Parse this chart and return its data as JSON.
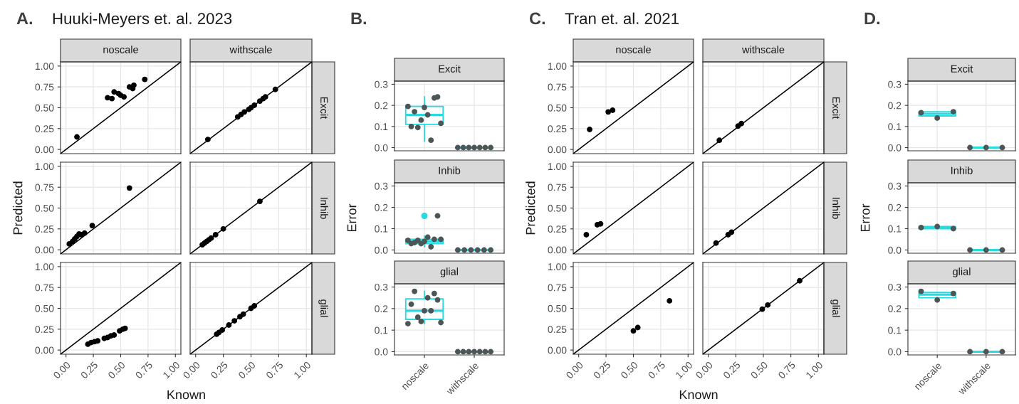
{
  "chart_data": [
    {
      "type": "scatter",
      "title": "noscale",
      "annotations": [
        "A.",
        "Huuki-Meyers et. al. 2023"
      ],
      "xlim": [
        -0.05,
        1.05
      ],
      "ylim": [
        -0.05,
        1.05
      ],
      "xticks": [
        0,
        0.25,
        0.5,
        0.75,
        1
      ],
      "yticks": [
        {
          "value": 0,
          "label": "0.00"
        },
        {
          "value": 0.25,
          "label": "0.25"
        },
        {
          "value": 0.5,
          "label": "0.50"
        },
        {
          "value": 0.75,
          "label": "0.75"
        },
        {
          "value": 1,
          "label": "1.00"
        }
      ],
      "tick_labels": "y",
      "grid": true,
      "series": [
        {
          "color": "#000000",
          "marker": "circle",
          "x": [
            0.1,
            0.38,
            0.42,
            0.44,
            0.48,
            0.5,
            0.53,
            0.58,
            0.61,
            0.62,
            0.72
          ],
          "values": [
            0.15,
            0.62,
            0.61,
            0.69,
            0.67,
            0.65,
            0.63,
            0.75,
            0.73,
            0.77,
            0.84
          ]
        },
        {
          "type": "line",
          "color": "#000000",
          "x": [
            -0.05,
            1.05
          ],
          "values": [
            -0.05,
            1.05
          ]
        }
      ]
    },
    {
      "type": "scatter",
      "title": "withscale",
      "y2label": "Excit",
      "xlim": [
        -0.05,
        1.05
      ],
      "ylim": [
        -0.05,
        1.05
      ],
      "xticks": [
        0,
        0.25,
        0.5,
        0.75,
        1
      ],
      "yticks": [
        0,
        0.25,
        0.5,
        0.75,
        1
      ],
      "tick_labels": false,
      "grid": true,
      "series": [
        {
          "color": "#000000",
          "marker": "circle",
          "x": [
            0.11,
            0.38,
            0.41,
            0.44,
            0.48,
            0.5,
            0.53,
            0.58,
            0.61,
            0.63,
            0.72
          ],
          "values": [
            0.12,
            0.39,
            0.42,
            0.45,
            0.48,
            0.5,
            0.53,
            0.58,
            0.61,
            0.63,
            0.72
          ]
        },
        {
          "type": "line",
          "color": "#000000",
          "x": [
            -0.05,
            1.05
          ],
          "values": [
            -0.05,
            1.05
          ]
        }
      ]
    },
    {
      "type": "scatter",
      "ylabel": "Predicted",
      "xlim": [
        -0.05,
        1.05
      ],
      "ylim": [
        -0.05,
        1.05
      ],
      "xticks": [
        0,
        0.25,
        0.5,
        0.75,
        1
      ],
      "yticks": [
        {
          "value": 0,
          "label": "0.00"
        },
        {
          "value": 0.25,
          "label": "0.25"
        },
        {
          "value": 0.5,
          "label": "0.50"
        },
        {
          "value": 0.75,
          "label": "0.75"
        },
        {
          "value": 1,
          "label": "1.00"
        }
      ],
      "tick_labels": "y",
      "grid": true,
      "series": [
        {
          "color": "#000000",
          "marker": "circle",
          "x": [
            0.03,
            0.06,
            0.08,
            0.1,
            0.12,
            0.14,
            0.17,
            0.24,
            0.58
          ],
          "values": [
            0.07,
            0.1,
            0.13,
            0.16,
            0.19,
            0.18,
            0.2,
            0.29,
            0.74
          ]
        },
        {
          "type": "line",
          "color": "#000000",
          "x": [
            -0.05,
            1.05
          ],
          "values": [
            -0.05,
            1.05
          ]
        }
      ]
    },
    {
      "type": "scatter",
      "y2label": "Inhib",
      "xlim": [
        -0.05,
        1.05
      ],
      "ylim": [
        -0.05,
        1.05
      ],
      "xticks": [
        0,
        0.25,
        0.5,
        0.75,
        1
      ],
      "yticks": [
        0,
        0.25,
        0.5,
        0.75,
        1
      ],
      "tick_labels": false,
      "grid": true,
      "series": [
        {
          "color": "#000000",
          "marker": "circle",
          "x": [
            0.06,
            0.08,
            0.1,
            0.12,
            0.14,
            0.18,
            0.25,
            0.58
          ],
          "values": [
            0.06,
            0.08,
            0.1,
            0.12,
            0.14,
            0.18,
            0.25,
            0.58
          ]
        },
        {
          "type": "line",
          "color": "#000000",
          "x": [
            -0.05,
            1.05
          ],
          "values": [
            -0.05,
            1.05
          ]
        }
      ]
    },
    {
      "type": "scatter",
      "xlabel": "Known",
      "xlim": [
        -0.05,
        1.05
      ],
      "ylim": [
        -0.05,
        1.05
      ],
      "xticks": [
        {
          "value": 0,
          "label": "0.00"
        },
        {
          "value": 0.25,
          "label": "0.25"
        },
        {
          "value": 0.5,
          "label": "0.50"
        },
        {
          "value": 0.75,
          "label": "0.75"
        },
        {
          "value": 1,
          "label": "1.00"
        }
      ],
      "yticks": [
        {
          "value": 0,
          "label": "0.00"
        },
        {
          "value": 0.25,
          "label": "0.25"
        },
        {
          "value": 0.5,
          "label": "0.50"
        },
        {
          "value": 0.75,
          "label": "0.75"
        },
        {
          "value": 1,
          "label": "1.00"
        }
      ],
      "grid": true,
      "series": [
        {
          "color": "#000000",
          "marker": "circle",
          "x": [
            0.2,
            0.23,
            0.26,
            0.29,
            0.35,
            0.38,
            0.41,
            0.44,
            0.49,
            0.52,
            0.54
          ],
          "values": [
            0.07,
            0.09,
            0.1,
            0.11,
            0.14,
            0.15,
            0.17,
            0.18,
            0.23,
            0.25,
            0.26
          ]
        },
        {
          "type": "line",
          "color": "#000000",
          "x": [
            -0.05,
            1.05
          ],
          "values": [
            -0.05,
            1.05
          ]
        }
      ]
    },
    {
      "type": "scatter",
      "y2label": "glial",
      "xlim": [
        -0.05,
        1.05
      ],
      "ylim": [
        -0.05,
        1.05
      ],
      "xticks": [
        {
          "value": 0,
          "label": "0.00"
        },
        {
          "value": 0.25,
          "label": "0.25"
        },
        {
          "value": 0.5,
          "label": "0.50"
        },
        {
          "value": 0.75,
          "label": "0.75"
        },
        {
          "value": 1,
          "label": "1.00"
        }
      ],
      "yticks": [
        0,
        0.25,
        0.5,
        0.75,
        1
      ],
      "tick_labels": "x",
      "grid": true,
      "series": [
        {
          "color": "#000000",
          "marker": "circle",
          "x": [
            0.19,
            0.21,
            0.24,
            0.3,
            0.35,
            0.4,
            0.43,
            0.5,
            0.53
          ],
          "values": [
            0.19,
            0.21,
            0.24,
            0.3,
            0.35,
            0.4,
            0.43,
            0.5,
            0.53
          ]
        },
        {
          "type": "line",
          "color": "#000000",
          "x": [
            -0.05,
            1.05
          ],
          "values": [
            -0.05,
            1.05
          ]
        }
      ]
    },
    {
      "type": "box",
      "title": "Excit",
      "annotations": [
        "B."
      ],
      "categories": [
        "noscale",
        "withscale"
      ],
      "ylim": [
        -0.015,
        0.315
      ],
      "yticks": [
        {
          "value": 0,
          "label": "0.0"
        },
        {
          "value": 0.1,
          "label": "0.1"
        },
        {
          "value": 0.2,
          "label": "0.2"
        },
        {
          "value": 0.3,
          "label": "0.3"
        }
      ],
      "tick_labels": "y",
      "grid": true,
      "series": [
        {
          "color": "#29d9e0",
          "boxes": [
            {
              "low": 0.03,
              "q1": 0.11,
              "median": 0.155,
              "q3": 0.195,
              "high": 0.24
            },
            {
              "low": 0,
              "q1": 0,
              "median": 0,
              "q3": 0,
              "high": 0
            }
          ]
        },
        {
          "type": "scatter",
          "marker": "circle",
          "color": "#4d5656",
          "x": [
            "noscale",
            "noscale",
            "noscale",
            "noscale",
            "noscale",
            "noscale",
            "noscale",
            "noscale",
            "noscale",
            "noscale",
            "noscale",
            "withscale",
            "withscale",
            "withscale",
            "withscale",
            "withscale",
            "withscale",
            "withscale"
          ],
          "values": [
            0.195,
            0.1,
            0.17,
            0.095,
            0.13,
            0.19,
            0.155,
            0.035,
            0.235,
            0.24,
            0.115,
            0,
            0,
            0,
            0,
            0,
            0,
            0
          ]
        }
      ]
    },
    {
      "type": "box",
      "title": "Inhib",
      "ylabel": "Error",
      "categories": [
        "noscale",
        "withscale"
      ],
      "ylim": [
        -0.015,
        0.315
      ],
      "yticks": [
        {
          "value": 0,
          "label": "0.0"
        },
        {
          "value": 0.1,
          "label": "0.1"
        },
        {
          "value": 0.2,
          "label": "0.2"
        },
        {
          "value": 0.3,
          "label": "0.3"
        }
      ],
      "tick_labels": "y",
      "grid": true,
      "series": [
        {
          "color": "#29d9e0",
          "boxes": [
            {
              "low": 0.015,
              "q1": 0.03,
              "median": 0.04,
              "q3": 0.05,
              "high": 0.065,
              "outliers": [
                0.16
              ]
            },
            {
              "low": 0,
              "q1": 0,
              "median": 0,
              "q3": 0,
              "high": 0
            }
          ]
        },
        {
          "type": "scatter",
          "marker": "circle",
          "color": "#4d5656",
          "x": [
            "noscale",
            "noscale",
            "noscale",
            "noscale",
            "noscale",
            "noscale",
            "noscale",
            "noscale",
            "noscale",
            "noscale",
            "noscale",
            "withscale",
            "withscale",
            "withscale",
            "withscale",
            "withscale",
            "withscale"
          ],
          "values": [
            0.045,
            0.03,
            0.035,
            0.045,
            0.03,
            0.04,
            0.06,
            0.015,
            0.05,
            0.16,
            0.05,
            0,
            0,
            0,
            0,
            0,
            0
          ]
        }
      ]
    },
    {
      "type": "box",
      "title": "glial",
      "categories": [
        "noscale",
        "withscale"
      ],
      "ylim": [
        -0.015,
        0.315
      ],
      "yticks": [
        {
          "value": 0,
          "label": "0.0"
        },
        {
          "value": 0.1,
          "label": "0.1"
        },
        {
          "value": 0.2,
          "label": "0.2"
        },
        {
          "value": 0.3,
          "label": "0.3"
        }
      ],
      "grid": true,
      "series": [
        {
          "color": "#29d9e0",
          "boxes": [
            {
              "low": 0.13,
              "q1": 0.15,
              "median": 0.19,
              "q3": 0.245,
              "high": 0.28
            },
            {
              "low": 0,
              "q1": 0,
              "median": 0,
              "q3": 0,
              "high": 0
            }
          ]
        },
        {
          "type": "scatter",
          "marker": "circle",
          "color": "#4d5656",
          "x": [
            "noscale",
            "noscale",
            "noscale",
            "noscale",
            "noscale",
            "noscale",
            "noscale",
            "noscale",
            "noscale",
            "noscale",
            "noscale",
            "withscale",
            "withscale",
            "withscale",
            "withscale",
            "withscale",
            "withscale",
            "withscale"
          ],
          "values": [
            0.13,
            0.22,
            0.28,
            0.16,
            0.14,
            0.19,
            0.25,
            0.19,
            0.27,
            0.24,
            0.135,
            0,
            0,
            0,
            0,
            0,
            0,
            0
          ]
        }
      ]
    },
    {
      "type": "scatter",
      "title": "noscale",
      "annotations": [
        "C.",
        "Tran et. al. 2021"
      ],
      "xlim": [
        -0.05,
        1.05
      ],
      "ylim": [
        -0.05,
        1.05
      ],
      "xticks": [
        0,
        0.25,
        0.5,
        0.75,
        1
      ],
      "yticks": [
        {
          "value": 0,
          "label": "0.00"
        },
        {
          "value": 0.25,
          "label": "0.25"
        },
        {
          "value": 0.5,
          "label": "0.50"
        },
        {
          "value": 0.75,
          "label": "0.75"
        },
        {
          "value": 1,
          "label": "1.00"
        }
      ],
      "tick_labels": "y",
      "grid": true,
      "series": [
        {
          "color": "#000000",
          "marker": "circle",
          "x": [
            0.1,
            0.27,
            0.31
          ],
          "values": [
            0.24,
            0.45,
            0.47
          ]
        },
        {
          "type": "line",
          "color": "#000000",
          "x": [
            -0.05,
            1.05
          ],
          "values": [
            -0.05,
            1.05
          ]
        }
      ]
    },
    {
      "type": "scatter",
      "title": "withscale",
      "y2label": "Excit",
      "xlim": [
        -0.05,
        1.05
      ],
      "ylim": [
        -0.05,
        1.05
      ],
      "xticks": [
        0,
        0.25,
        0.5,
        0.75,
        1
      ],
      "yticks": [
        0,
        0.25,
        0.5,
        0.75,
        1
      ],
      "tick_labels": false,
      "grid": true,
      "series": [
        {
          "color": "#000000",
          "marker": "circle",
          "x": [
            0.1,
            0.27,
            0.3
          ],
          "values": [
            0.11,
            0.28,
            0.31
          ]
        },
        {
          "type": "line",
          "color": "#000000",
          "x": [
            -0.05,
            1.05
          ],
          "values": [
            -0.05,
            1.05
          ]
        }
      ]
    },
    {
      "type": "scatter",
      "ylabel": "Predicted",
      "xlim": [
        -0.05,
        1.05
      ],
      "ylim": [
        -0.05,
        1.05
      ],
      "xticks": [
        0,
        0.25,
        0.5,
        0.75,
        1
      ],
      "yticks": [
        {
          "value": 0,
          "label": "0.00"
        },
        {
          "value": 0.25,
          "label": "0.25"
        },
        {
          "value": 0.5,
          "label": "0.50"
        },
        {
          "value": 0.75,
          "label": "0.75"
        },
        {
          "value": 1,
          "label": "1.00"
        }
      ],
      "tick_labels": "y",
      "grid": true,
      "series": [
        {
          "color": "#000000",
          "marker": "circle",
          "x": [
            0.07,
            0.17,
            0.2
          ],
          "values": [
            0.18,
            0.3,
            0.31
          ]
        },
        {
          "type": "line",
          "color": "#000000",
          "x": [
            -0.05,
            1.05
          ],
          "values": [
            -0.05,
            1.05
          ]
        }
      ]
    },
    {
      "type": "scatter",
      "y2label": "Inhib",
      "xlim": [
        -0.05,
        1.05
      ],
      "ylim": [
        -0.05,
        1.05
      ],
      "xticks": [
        0,
        0.25,
        0.5,
        0.75,
        1
      ],
      "yticks": [
        0,
        0.25,
        0.5,
        0.75,
        1
      ],
      "tick_labels": false,
      "grid": true,
      "series": [
        {
          "color": "#000000",
          "marker": "circle",
          "x": [
            0.07,
            0.18,
            0.21
          ],
          "values": [
            0.08,
            0.18,
            0.21
          ]
        },
        {
          "type": "line",
          "color": "#000000",
          "x": [
            -0.05,
            1.05
          ],
          "values": [
            -0.05,
            1.05
          ]
        }
      ]
    },
    {
      "type": "scatter",
      "xlabel": "Known",
      "xlim": [
        -0.05,
        1.05
      ],
      "ylim": [
        -0.05,
        1.05
      ],
      "xticks": [
        {
          "value": 0,
          "label": "0.00"
        },
        {
          "value": 0.25,
          "label": "0.25"
        },
        {
          "value": 0.5,
          "label": "0.50"
        },
        {
          "value": 0.75,
          "label": "0.75"
        },
        {
          "value": 1,
          "label": "1.00"
        }
      ],
      "yticks": [
        {
          "value": 0,
          "label": "0.00"
        },
        {
          "value": 0.25,
          "label": "0.25"
        },
        {
          "value": 0.5,
          "label": "0.50"
        },
        {
          "value": 0.75,
          "label": "0.75"
        },
        {
          "value": 1,
          "label": "1.00"
        }
      ],
      "grid": true,
      "series": [
        {
          "color": "#000000",
          "marker": "circle",
          "x": [
            0.5,
            0.54,
            0.83
          ],
          "values": [
            0.23,
            0.27,
            0.59
          ]
        },
        {
          "type": "line",
          "color": "#000000",
          "x": [
            -0.05,
            1.05
          ],
          "values": [
            -0.05,
            1.05
          ]
        }
      ]
    },
    {
      "type": "scatter",
      "y2label": "glial",
      "xlim": [
        -0.05,
        1.05
      ],
      "ylim": [
        -0.05,
        1.05
      ],
      "xticks": [
        {
          "value": 0,
          "label": "0.00"
        },
        {
          "value": 0.25,
          "label": "0.25"
        },
        {
          "value": 0.5,
          "label": "0.50"
        },
        {
          "value": 0.75,
          "label": "0.75"
        },
        {
          "value": 1,
          "label": "1.00"
        }
      ],
      "yticks": [
        0,
        0.25,
        0.5,
        0.75,
        1
      ],
      "tick_labels": "x",
      "grid": true,
      "series": [
        {
          "color": "#000000",
          "marker": "circle",
          "x": [
            0.49,
            0.54,
            0.83
          ],
          "values": [
            0.49,
            0.54,
            0.83
          ]
        },
        {
          "type": "line",
          "color": "#000000",
          "x": [
            -0.05,
            1.05
          ],
          "values": [
            -0.05,
            1.05
          ]
        }
      ]
    },
    {
      "type": "box",
      "title": "Excit",
      "annotations": [
        "D."
      ],
      "categories": [
        "noscale",
        "withscale"
      ],
      "ylim": [
        -0.015,
        0.315
      ],
      "yticks": [
        {
          "value": 0,
          "label": "0.0"
        },
        {
          "value": 0.1,
          "label": "0.1"
        },
        {
          "value": 0.2,
          "label": "0.2"
        },
        {
          "value": 0.3,
          "label": "0.3"
        }
      ],
      "tick_labels": "y",
      "grid": true,
      "series": [
        {
          "color": "#29d9e0",
          "boxes": [
            {
              "low": 0.14,
              "q1": 0.15,
              "median": 0.16,
              "q3": 0.17,
              "high": 0.17
            },
            {
              "low": 0,
              "q1": 0,
              "median": 0,
              "q3": 0,
              "high": 0
            }
          ]
        },
        {
          "type": "scatter",
          "marker": "circle",
          "color": "#4d5656",
          "x": [
            "noscale",
            "noscale",
            "noscale",
            "withscale",
            "withscale",
            "withscale"
          ],
          "values": [
            0.165,
            0.14,
            0.17,
            0,
            0,
            0
          ]
        }
      ]
    },
    {
      "type": "box",
      "title": "Inhib",
      "ylabel": "Error",
      "categories": [
        "noscale",
        "withscale"
      ],
      "ylim": [
        -0.015,
        0.315
      ],
      "yticks": [
        {
          "value": 0,
          "label": "0.0"
        },
        {
          "value": 0.1,
          "label": "0.1"
        },
        {
          "value": 0.2,
          "label": "0.2"
        },
        {
          "value": 0.3,
          "label": "0.3"
        }
      ],
      "tick_labels": "y",
      "grid": true,
      "series": [
        {
          "color": "#29d9e0",
          "boxes": [
            {
              "low": 0.1,
              "q1": 0.1,
              "median": 0.105,
              "q3": 0.11,
              "high": 0.11
            },
            {
              "low": 0,
              "q1": 0,
              "median": 0,
              "q3": 0,
              "high": 0
            }
          ]
        },
        {
          "type": "scatter",
          "marker": "circle",
          "color": "#4d5656",
          "x": [
            "noscale",
            "noscale",
            "noscale",
            "withscale",
            "withscale",
            "withscale"
          ],
          "values": [
            0.105,
            0.11,
            0.1,
            0,
            0,
            0
          ]
        }
      ]
    },
    {
      "type": "box",
      "title": "glial",
      "categories": [
        "noscale",
        "withscale"
      ],
      "ylim": [
        -0.015,
        0.315
      ],
      "yticks": [
        {
          "value": 0,
          "label": "0.0"
        },
        {
          "value": 0.1,
          "label": "0.1"
        },
        {
          "value": 0.2,
          "label": "0.2"
        },
        {
          "value": 0.3,
          "label": "0.3"
        }
      ],
      "grid": true,
      "series": [
        {
          "color": "#29d9e0",
          "boxes": [
            {
              "low": 0.25,
              "q1": 0.25,
              "median": 0.265,
              "q3": 0.275,
              "high": 0.275
            },
            {
              "low": 0,
              "q1": 0,
              "median": 0,
              "q3": 0,
              "high": 0
            }
          ]
        },
        {
          "type": "scatter",
          "marker": "circle",
          "color": "#4d5656",
          "x": [
            "noscale",
            "noscale",
            "noscale",
            "withscale",
            "withscale",
            "withscale"
          ],
          "values": [
            0.28,
            0.24,
            0.27,
            0,
            0,
            0
          ]
        }
      ]
    }
  ]
}
